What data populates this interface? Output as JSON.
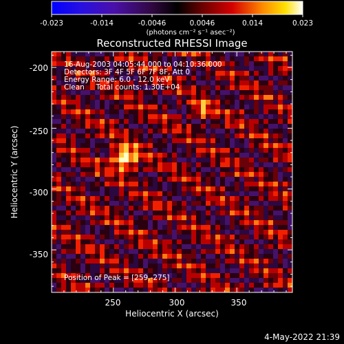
{
  "colorbar": {
    "tick_labels": [
      "-0.023",
      "-0.014",
      "-0.0046",
      "0.0046",
      "0.014",
      "0.023"
    ],
    "unit_label": "(photons cm⁻² s⁻¹ asec⁻²)",
    "range": [
      -0.023,
      0.023
    ]
  },
  "title": "Reconstructed RHESSI Image",
  "info_lines": [
    "16-Aug-2003 04:05:44.000 to 04:10:36.000",
    "Detectors: 3F 4F 5F 6F 7F 8F, Att 0",
    "Energy Range: 6.0 - 12.0 keV",
    "Clean     Total counts: 1.30E+04"
  ],
  "peak_label": "Position of Peak = [259,-275]",
  "x_axis": {
    "label": "Heliocentric X (arcsec)",
    "range": [
      200,
      395
    ],
    "ticks": [
      250,
      300,
      350
    ]
  },
  "y_axis": {
    "label": "Heliocentric Y (arcsec)",
    "range": [
      -385,
      -187
    ],
    "ticks": [
      -200,
      -250,
      -300,
      -350
    ]
  },
  "footer_date": "4-May-2022 21:39"
}
